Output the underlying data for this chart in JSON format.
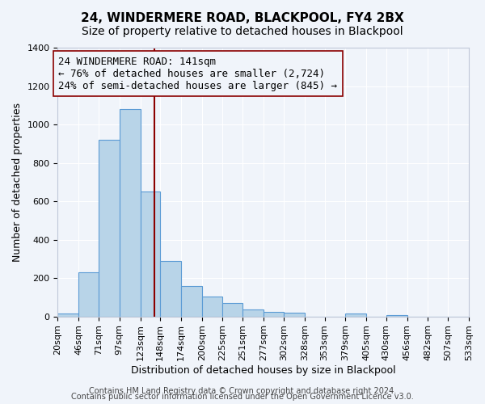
{
  "title": "24, WINDERMERE ROAD, BLACKPOOL, FY4 2BX",
  "subtitle": "Size of property relative to detached houses in Blackpool",
  "xlabel": "Distribution of detached houses by size in Blackpool",
  "ylabel": "Number of detached properties",
  "bar_values": [
    15,
    228,
    920,
    1080,
    650,
    290,
    157,
    105,
    68,
    38,
    22,
    18,
    0,
    0,
    15,
    0,
    8,
    0,
    0,
    0
  ],
  "bin_edges": [
    20,
    46,
    71,
    97,
    123,
    148,
    174,
    200,
    225,
    251,
    277,
    302,
    328,
    353,
    379,
    405,
    430,
    456,
    482,
    507,
    533
  ],
  "tick_labels": [
    "20sqm",
    "46sqm",
    "71sqm",
    "97sqm",
    "123sqm",
    "148sqm",
    "174sqm",
    "200sqm",
    "225sqm",
    "251sqm",
    "277sqm",
    "302sqm",
    "328sqm",
    "353sqm",
    "379sqm",
    "405sqm",
    "430sqm",
    "456sqm",
    "482sqm",
    "507sqm",
    "533sqm"
  ],
  "bar_color": "#b8d4e8",
  "bar_edge_color": "#5b9bd5",
  "vline_x": 141,
  "vline_color": "#8b0000",
  "annotation_title": "24 WINDERMERE ROAD: 141sqm",
  "annotation_line1": "← 76% of detached houses are smaller (2,724)",
  "annotation_line2": "24% of semi-detached houses are larger (845) →",
  "annotation_box_edge": "#8b0000",
  "ylim": [
    0,
    1400
  ],
  "yticks": [
    0,
    200,
    400,
    600,
    800,
    1000,
    1200,
    1400
  ],
  "footer1": "Contains HM Land Registry data © Crown copyright and database right 2024.",
  "footer2": "Contains public sector information licensed under the Open Government Licence v3.0.",
  "background_color": "#f0f4fa",
  "grid_color": "#ffffff",
  "title_fontsize": 11,
  "subtitle_fontsize": 10,
  "axis_label_fontsize": 9,
  "tick_fontsize": 8,
  "annotation_fontsize": 9,
  "footer_fontsize": 7
}
